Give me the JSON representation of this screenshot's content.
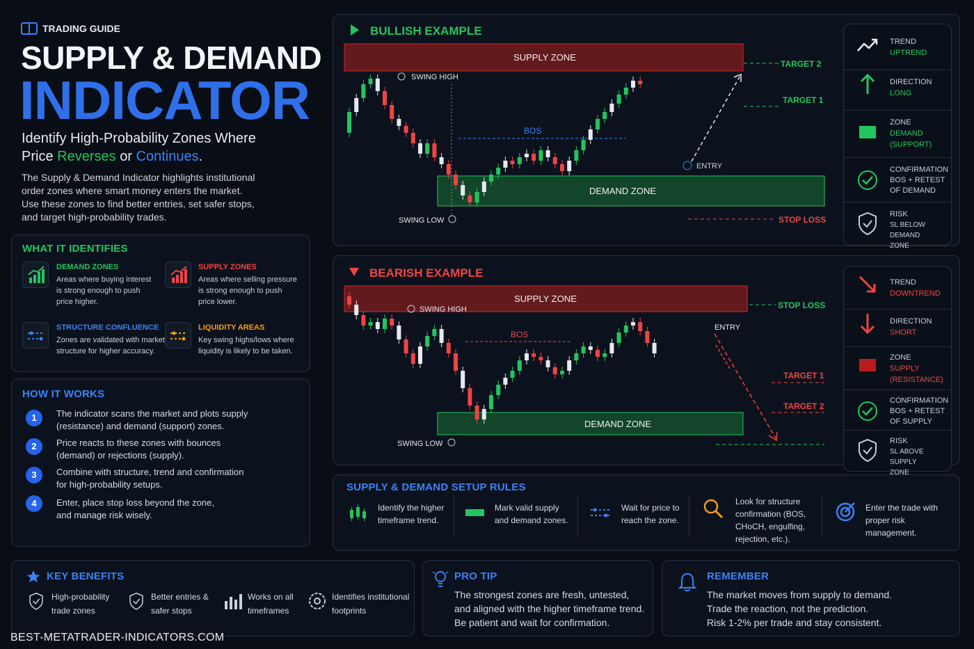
{
  "header": {
    "eyebrow": "TRADING GUIDE",
    "title1": "SUPPLY & DEMAND",
    "title2": "INDICATOR",
    "sub_a": "Identify High-Probability Zones Where",
    "sub_b": "Price",
    "sub_reverses": "Reverses",
    "sub_or": "or",
    "sub_continues": "Continues",
    "sub_dot": ".",
    "desc": [
      "The Supply & Demand Indicator highlights institutional",
      "order zones where smart money enters the market.",
      "Use these zones to find better entries, set safer stops,",
      "and target high-probability trades."
    ]
  },
  "identifies": {
    "title": "WHAT IT IDENTIFIES",
    "items": [
      {
        "title": "DEMAND ZONES",
        "text": [
          "Areas where buying interest",
          "is strong enough to push",
          "price higher."
        ]
      },
      {
        "title": "SUPPLY ZONES",
        "text": [
          "Areas where selling pressure",
          "is strong enough to push",
          "price lower."
        ]
      },
      {
        "title": "STRUCTURE CONFLUENCE",
        "text": [
          "Zones are validated with market",
          "structure for higher accuracy."
        ]
      },
      {
        "title": "LIQUIDITY AREAS",
        "text": [
          "Key swing highs/lows where",
          "liquidity is likely to be taken."
        ]
      }
    ]
  },
  "how": {
    "title": "HOW IT WORKS",
    "steps": [
      {
        "n": "1",
        "text": [
          "The indicator scans the market and plots supply",
          "(resistance) and demand (support) zones."
        ]
      },
      {
        "n": "2",
        "text": [
          "Price reacts to these zones with bounces",
          "(demand) or rejections (supply)."
        ]
      },
      {
        "n": "3",
        "text": [
          "Combine with structure, trend and confirmation",
          "for high-probability setups."
        ]
      },
      {
        "n": "4",
        "text": [
          "Enter, place stop loss beyond the zone,",
          "and manage risk wisely."
        ]
      }
    ]
  },
  "bullish": {
    "title": "BULLISH EXAMPLE",
    "supply": "SUPPLY ZONE",
    "demand": "DEMAND ZONE",
    "swing_high": "SWING HIGH",
    "swing_low": "SWING LOW",
    "bos": "BOS",
    "entry": "ENTRY",
    "target2": "TARGET 2",
    "target1": "TARGET 1",
    "stop": "STOP LOSS",
    "side": [
      {
        "label": "TREND",
        "value": [
          "UPTREND"
        ]
      },
      {
        "label": "DIRECTION",
        "value": [
          "LONG"
        ]
      },
      {
        "label": "ZONE",
        "value": [
          "DEMAND",
          "(SUPPORT)"
        ]
      },
      {
        "label": "CONFIRMATION",
        "value": [
          "BOS + RETEST",
          "OF DEMAND"
        ]
      },
      {
        "label": "RISK",
        "value": [
          "SL BELOW DEMAND",
          "ZONE"
        ]
      }
    ]
  },
  "bearish": {
    "title": "BEARISH EXAMPLE",
    "supply": "SUPPLY ZONE",
    "demand": "DEMAND ZONE",
    "swing_high": "SWING HIGH",
    "swing_low": "SWING LOW",
    "bos": "BOS",
    "entry": "ENTRY",
    "stop": "STOP LOSS",
    "target1": "TARGET 1",
    "target2": "TARGET 2",
    "side": [
      {
        "label": "TREND",
        "value": [
          "DOWNTREND"
        ]
      },
      {
        "label": "DIRECTION",
        "value": [
          "SHORT"
        ]
      },
      {
        "label": "ZONE",
        "value": [
          "SUPPLY",
          "(RESISTANCE)"
        ]
      },
      {
        "label": "CONFIRMATION",
        "value": [
          "BOS + RETEST",
          "OF SUPPLY"
        ]
      },
      {
        "label": "RISK",
        "value": [
          "SL ABOVE SUPPLY",
          "ZONE"
        ]
      }
    ]
  },
  "rules": {
    "title": "SUPPLY & DEMAND SETUP RULES",
    "items": [
      {
        "text": [
          "Identify the higher",
          "timeframe trend."
        ]
      },
      {
        "text": [
          "Mark valid supply",
          "and demand zones."
        ]
      },
      {
        "text": [
          "Wait for price to",
          "reach the zone."
        ]
      },
      {
        "text": [
          "Look for structure",
          "confirmation (BOS,",
          "CHoCH, engulfing,",
          "rejection, etc.)."
        ]
      },
      {
        "text": [
          "Enter the trade with",
          "proper risk",
          "management."
        ]
      }
    ]
  },
  "benefits": {
    "title": "KEY BENEFITS",
    "items": [
      {
        "text": [
          "High-probability",
          "trade zones"
        ]
      },
      {
        "text": [
          "Better entries &",
          "safer stops"
        ]
      },
      {
        "text": [
          "Works on all",
          "timeframes"
        ]
      },
      {
        "text": [
          "Identifies institutional",
          "footprints"
        ]
      }
    ]
  },
  "tip": {
    "title": "PRO TIP",
    "text": [
      "The strongest zones are fresh, untested,",
      "and aligned with the higher timeframe trend.",
      "Be patient and wait for confirmation."
    ]
  },
  "remember": {
    "title": "REMEMBER",
    "text": [
      "The market moves from supply to demand.",
      "Trade the reaction, not the prediction.",
      "Risk 1-2% per trade and stay consistent."
    ]
  },
  "footer": {
    "site": "BEST-METATRADER-INDICATORS.COM"
  },
  "colors": {
    "green": "#22c55e",
    "red": "#ef4444",
    "blue": "#3b82f6",
    "orange": "#f59e0b"
  }
}
